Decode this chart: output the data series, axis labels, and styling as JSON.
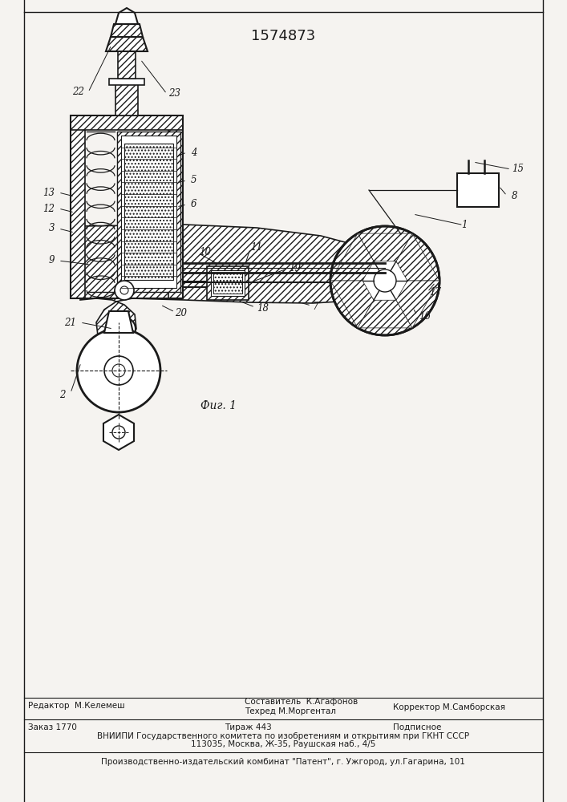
{
  "title": "1574873",
  "fig_label": "Фиг. 1",
  "background_color": "#f5f3f0",
  "line_color": "#1a1a1a",
  "title_fontsize": 13,
  "label_fontsize": 8.5,
  "fig_label_fontsize": 10,
  "footer": {
    "line1_left": "Редактор  М.Келемеш",
    "line1_mid_top": "Составитель  К.Агафонов",
    "line1_mid_bot": "Техред М.Моргентал",
    "line1_right": "Корректор М.Самборская",
    "line2_order": "Заказ 1770",
    "line2_tirazh": "Тираж 443",
    "line2_podp": "Подписное",
    "line3": "ВНИИПИ Государственного комитета по изобретениям и открытиям при ГКНТ СССР",
    "line4": "113035, Москва, Ж-35, Раушская наб., 4/5",
    "line5": "Производственно-издательский комбинат \"Патент\", г. Ужгород, ул.Гагарина, 101"
  }
}
